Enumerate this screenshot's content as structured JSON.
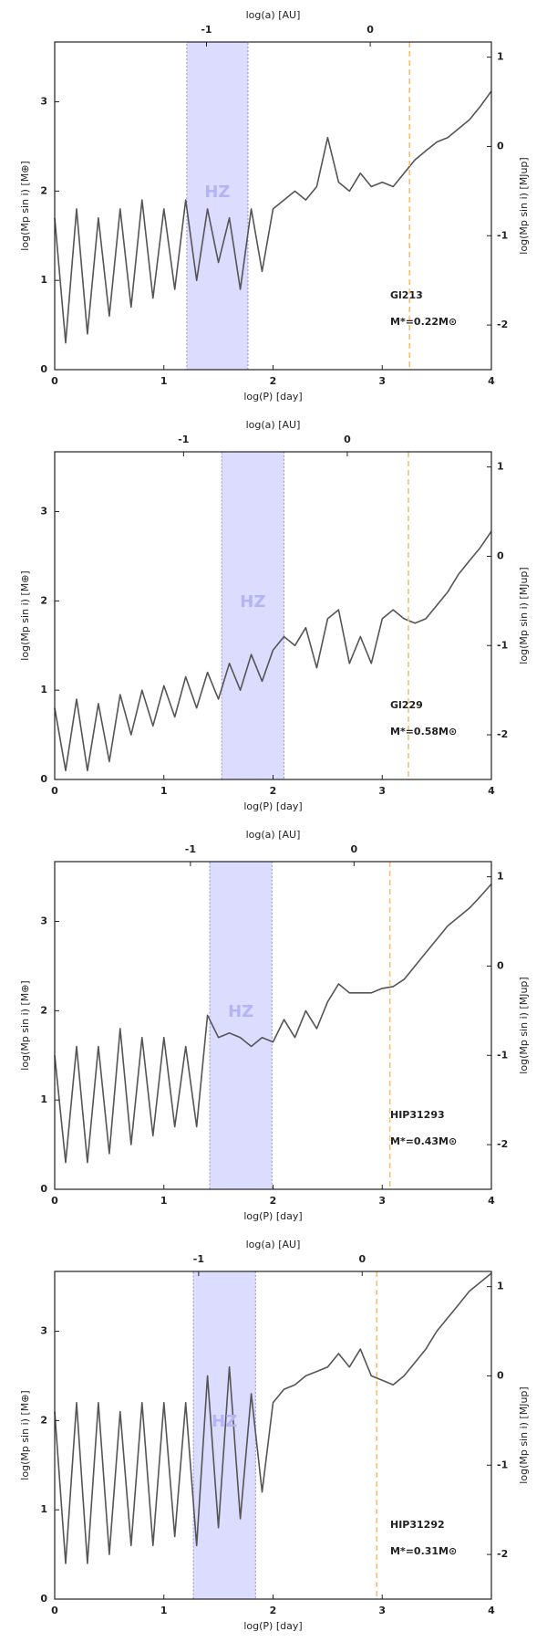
{
  "chart_data": [
    {
      "type": "line",
      "xlabel": "log(P) [day]",
      "x2label": "log(a) [AU]",
      "ylabel": "log(Mp sin i) [M⊕]",
      "y2label": "log(Mp sin i) [MJup]",
      "xlim": [
        0,
        4
      ],
      "xticks": [
        0,
        1,
        2,
        3,
        4
      ],
      "x2lim": [
        -1.927,
        0.74
      ],
      "x2ticks": [
        -1,
        0
      ],
      "ylim": [
        0,
        3.67
      ],
      "yticks": [
        0,
        1,
        2,
        3
      ],
      "y2lim": [
        -2.5,
        1.17
      ],
      "y2ticks": [
        -2,
        -1,
        0,
        1
      ],
      "hz": [
        1.21,
        1.77
      ],
      "hz_label": "HZ",
      "marker_x": 3.25,
      "star": "Gl213",
      "mass": "M*=0.22M⊙",
      "color": "#555555",
      "x": [
        0,
        0.1,
        0.2,
        0.3,
        0.4,
        0.5,
        0.6,
        0.7,
        0.8,
        0.9,
        1,
        1.1,
        1.2,
        1.3,
        1.4,
        1.5,
        1.6,
        1.7,
        1.8,
        1.9,
        2,
        2.1,
        2.2,
        2.3,
        2.4,
        2.5,
        2.6,
        2.7,
        2.8,
        2.9,
        3,
        3.1,
        3.2,
        3.3,
        3.4,
        3.5,
        3.6,
        3.7,
        3.8,
        3.9,
        4
      ],
      "values": [
        1.7,
        0.3,
        1.8,
        0.4,
        1.7,
        0.6,
        1.8,
        0.7,
        1.9,
        0.8,
        1.8,
        0.9,
        1.9,
        1.0,
        1.8,
        1.2,
        1.7,
        0.9,
        1.8,
        1.1,
        1.8,
        1.9,
        2.0,
        1.9,
        2.05,
        2.6,
        2.1,
        2.0,
        2.2,
        2.05,
        2.1,
        2.05,
        2.2,
        2.35,
        2.45,
        2.55,
        2.6,
        2.7,
        2.8,
        2.95,
        3.12
      ]
    },
    {
      "type": "line",
      "xlabel": "log(P) [day]",
      "x2label": "log(a) [AU]",
      "ylabel": "log(Mp sin i) [M⊕]",
      "y2label": "log(Mp sin i) [MJup]",
      "xlim": [
        0,
        4
      ],
      "xticks": [
        0,
        1,
        2,
        3,
        4
      ],
      "x2lim": [
        -1.787,
        0.88
      ],
      "x2ticks": [
        -1,
        0
      ],
      "ylim": [
        0,
        3.67
      ],
      "yticks": [
        0,
        1,
        2,
        3
      ],
      "y2lim": [
        -2.5,
        1.17
      ],
      "y2ticks": [
        -2,
        -1,
        0,
        1
      ],
      "hz": [
        1.53,
        2.1
      ],
      "hz_label": "HZ",
      "marker_x": 3.24,
      "star": "Gl229",
      "mass": "M*=0.58M⊙",
      "color": "#555555",
      "x": [
        0,
        0.1,
        0.2,
        0.3,
        0.4,
        0.5,
        0.6,
        0.7,
        0.8,
        0.9,
        1,
        1.1,
        1.2,
        1.3,
        1.4,
        1.5,
        1.6,
        1.7,
        1.8,
        1.9,
        2,
        2.1,
        2.2,
        2.3,
        2.4,
        2.5,
        2.6,
        2.7,
        2.8,
        2.9,
        3,
        3.1,
        3.2,
        3.3,
        3.4,
        3.5,
        3.6,
        3.7,
        3.8,
        3.9,
        4
      ],
      "values": [
        0.8,
        0.1,
        0.9,
        0.1,
        0.85,
        0.2,
        0.95,
        0.5,
        1.0,
        0.6,
        1.05,
        0.7,
        1.15,
        0.8,
        1.2,
        0.9,
        1.3,
        1.0,
        1.4,
        1.1,
        1.45,
        1.6,
        1.5,
        1.7,
        1.25,
        1.8,
        1.9,
        1.3,
        1.6,
        1.3,
        1.8,
        1.9,
        1.8,
        1.75,
        1.8,
        1.95,
        2.1,
        2.3,
        2.45,
        2.6,
        2.78
      ]
    },
    {
      "type": "line",
      "xlabel": "log(P) [day]",
      "x2label": "log(a) [AU]",
      "ylabel": "log(Mp sin i) [M⊕]",
      "y2label": "log(Mp sin i) [MJup]",
      "xlim": [
        0,
        4
      ],
      "xticks": [
        0,
        1,
        2,
        3,
        4
      ],
      "x2lim": [
        -1.83,
        0.84
      ],
      "x2ticks": [
        -1,
        0
      ],
      "ylim": [
        0,
        3.67
      ],
      "yticks": [
        0,
        1,
        2,
        3
      ],
      "y2lim": [
        -2.5,
        1.17
      ],
      "y2ticks": [
        -2,
        -1,
        0,
        1
      ],
      "hz": [
        1.42,
        1.99
      ],
      "hz_label": "HZ",
      "marker_x": 3.07,
      "star": "HIP31293",
      "mass": "M*=0.43M⊙",
      "color": "#555555",
      "x": [
        0,
        0.1,
        0.2,
        0.3,
        0.4,
        0.5,
        0.6,
        0.7,
        0.8,
        0.9,
        1,
        1.1,
        1.2,
        1.3,
        1.4,
        1.5,
        1.6,
        1.7,
        1.8,
        1.9,
        2,
        2.1,
        2.2,
        2.3,
        2.4,
        2.5,
        2.6,
        2.7,
        2.8,
        2.9,
        3,
        3.1,
        3.2,
        3.3,
        3.4,
        3.5,
        3.6,
        3.7,
        3.8,
        3.9,
        4
      ],
      "values": [
        1.5,
        0.3,
        1.6,
        0.3,
        1.6,
        0.4,
        1.8,
        0.5,
        1.7,
        0.6,
        1.7,
        0.7,
        1.6,
        0.7,
        1.95,
        1.7,
        1.75,
        1.7,
        1.6,
        1.7,
        1.65,
        1.9,
        1.7,
        2.0,
        1.8,
        2.1,
        2.3,
        2.2,
        2.2,
        2.2,
        2.25,
        2.27,
        2.35,
        2.5,
        2.65,
        2.8,
        2.95,
        3.05,
        3.15,
        3.28,
        3.42
      ]
    },
    {
      "type": "line",
      "xlabel": "log(P) [day]",
      "x2label": "log(a) [AU]",
      "ylabel": "log(Mp sin i) [M⊕]",
      "y2label": "log(Mp sin i) [MJup]",
      "xlim": [
        0,
        4
      ],
      "xticks": [
        0,
        1,
        2,
        3,
        4
      ],
      "x2lim": [
        -1.88,
        0.79
      ],
      "x2ticks": [
        -1,
        0
      ],
      "ylim": [
        0,
        3.67
      ],
      "yticks": [
        0,
        1,
        2,
        3
      ],
      "y2lim": [
        -2.5,
        1.17
      ],
      "y2ticks": [
        -2,
        -1,
        0,
        1
      ],
      "hz": [
        1.27,
        1.84
      ],
      "hz_label": "HZ",
      "marker_x": 2.95,
      "star": "HIP31292",
      "mass": "M*=0.31M⊙",
      "color": "#555555",
      "x": [
        0,
        0.1,
        0.2,
        0.3,
        0.4,
        0.5,
        0.6,
        0.7,
        0.8,
        0.9,
        1,
        1.1,
        1.2,
        1.3,
        1.4,
        1.5,
        1.6,
        1.7,
        1.8,
        1.9,
        2,
        2.1,
        2.2,
        2.3,
        2.4,
        2.5,
        2.6,
        2.7,
        2.8,
        2.9,
        3,
        3.1,
        3.2,
        3.3,
        3.4,
        3.5,
        3.6,
        3.7,
        3.8,
        3.9,
        4
      ],
      "values": [
        2.1,
        0.4,
        2.2,
        0.4,
        2.2,
        0.5,
        2.1,
        0.6,
        2.2,
        0.6,
        2.2,
        0.7,
        2.2,
        0.6,
        2.5,
        0.8,
        2.6,
        0.9,
        2.3,
        1.2,
        2.2,
        2.35,
        2.4,
        2.5,
        2.55,
        2.6,
        2.75,
        2.6,
        2.8,
        2.5,
        2.45,
        2.4,
        2.5,
        2.65,
        2.8,
        3.0,
        3.15,
        3.3,
        3.45,
        3.55,
        3.65
      ]
    }
  ]
}
